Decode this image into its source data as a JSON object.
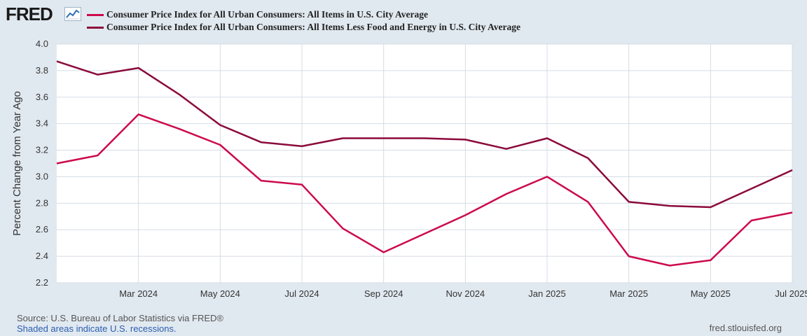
{
  "header": {
    "logo_text": "FRED",
    "logo_icon": "fred-graph-icon"
  },
  "colors": {
    "series1": "#cc0a4c",
    "series2": "#8b0a3c",
    "background": "#e1e9f0",
    "plot_bg": "#ffffff",
    "grid": "#d5dde5"
  },
  "footer": {
    "source": "Source: U.S. Bureau of Labor Statistics via FRED®",
    "recession_note": "Shaded areas indicate U.S. recessions.",
    "site": "fred.stlouisfed.org"
  },
  "chart_data": {
    "type": "line",
    "title": "",
    "xlabel": "",
    "ylabel": "Percent Change from Year Ago",
    "ylim": [
      2.2,
      4.0
    ],
    "yticks": [
      "2.2",
      "2.4",
      "2.6",
      "2.8",
      "3.0",
      "3.2",
      "3.4",
      "3.6",
      "3.8",
      "4.0"
    ],
    "x": [
      "Jan 2024",
      "Feb 2024",
      "Mar 2024",
      "Apr 2024",
      "May 2024",
      "Jun 2024",
      "Jul 2024",
      "Aug 2024",
      "Sep 2024",
      "Oct 2024",
      "Nov 2024",
      "Dec 2024",
      "Jan 2025",
      "Feb 2025",
      "Mar 2025",
      "Apr 2025",
      "May 2025",
      "Jun 2025",
      "Jul 2025"
    ],
    "xticks": [
      {
        "index": 2,
        "label": "Mar 2024"
      },
      {
        "index": 4,
        "label": "May 2024"
      },
      {
        "index": 6,
        "label": "Jul 2024"
      },
      {
        "index": 8,
        "label": "Sep 2024"
      },
      {
        "index": 10,
        "label": "Nov 2024"
      },
      {
        "index": 12,
        "label": "Jan 2025"
      },
      {
        "index": 14,
        "label": "Mar 2025"
      },
      {
        "index": 16,
        "label": "May 2025"
      },
      {
        "index": 18,
        "label": "Jul 2025"
      }
    ],
    "series": [
      {
        "name": "Consumer Price Index for All Urban Consumers: All Items in U.S. City Average",
        "color": "#cc0a4c",
        "values": [
          3.1,
          3.16,
          3.47,
          3.36,
          3.24,
          2.97,
          2.94,
          2.61,
          2.43,
          2.57,
          2.71,
          2.87,
          3.0,
          2.81,
          2.4,
          2.33,
          2.37,
          2.67,
          2.73
        ]
      },
      {
        "name": "Consumer Price Index for All Urban Consumers: All Items Less Food and Energy in U.S. City Average",
        "color": "#8b0a3c",
        "values": [
          3.87,
          3.77,
          3.82,
          3.62,
          3.39,
          3.26,
          3.23,
          3.29,
          3.29,
          3.29,
          3.28,
          3.21,
          3.29,
          3.14,
          2.81,
          2.78,
          2.77,
          2.91,
          3.05
        ]
      }
    ],
    "grid": true,
    "legend": "top-left"
  }
}
